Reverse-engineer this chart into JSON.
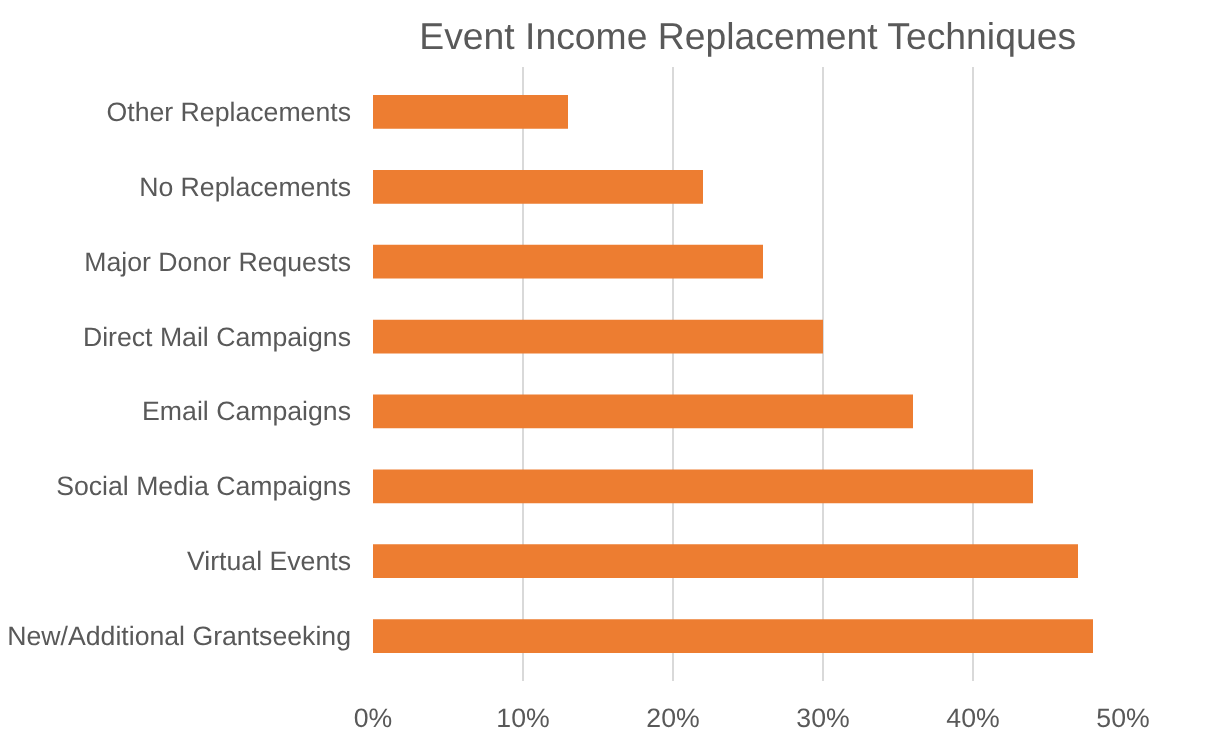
{
  "chart_data": {
    "type": "bar",
    "orientation": "horizontal",
    "title": "Event Income Replacement Techniques",
    "categories": [
      "Other Replacements",
      "No Replacements",
      "Major Donor Requests",
      "Direct Mail Campaigns",
      "Email Campaigns",
      "Social Media Campaigns",
      "Virtual Events",
      "New/Additional Grantseeking"
    ],
    "values": [
      13,
      22,
      26,
      30,
      36,
      44,
      47,
      48
    ],
    "color": "#ed7d31",
    "xlim": [
      0,
      50
    ],
    "xticks": [
      {
        "value": 0,
        "label": "0%"
      },
      {
        "value": 10,
        "label": "10%"
      },
      {
        "value": 20,
        "label": "20%"
      },
      {
        "value": 30,
        "label": "30%"
      },
      {
        "value": 40,
        "label": "40%"
      },
      {
        "value": 50,
        "label": "50%"
      }
    ],
    "grid": "x"
  }
}
